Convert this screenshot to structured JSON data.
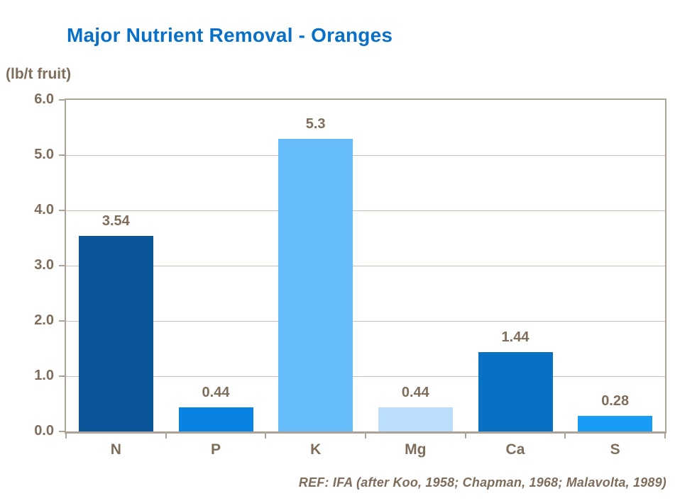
{
  "title": "Major Nutrient Removal - Oranges",
  "y_axis_unit_label": "(lb/t fruit)",
  "footnote": "REF: IFA (after Koo, 1958; Chapman, 1968; Malavolta, 1989)",
  "colors": {
    "title": "#0970C8",
    "text": "#7E6D5B",
    "grid": "#C9C0B3",
    "axis_border": "#ACA295",
    "background": "#FFFFFF",
    "bars": [
      "#0B559B",
      "#0883E3",
      "#66BBF9",
      "#BADEFB",
      "#0971C4",
      "#189CF5"
    ]
  },
  "chart_data": {
    "type": "bar",
    "title": "Major Nutrient Removal - Oranges",
    "xlabel": "",
    "ylabel": "(lb/t fruit)",
    "categories": [
      "N",
      "P",
      "K",
      "Mg",
      "Ca",
      "S"
    ],
    "values": [
      3.54,
      0.44,
      5.3,
      0.44,
      1.44,
      0.28
    ],
    "value_labels": [
      "3.54",
      "0.44",
      "5.3",
      "0.44",
      "1.44",
      "0.28"
    ],
    "ylim": [
      0,
      6
    ],
    "ytick_step": 1.0,
    "ytick_labels": [
      "0.0",
      "1.0",
      "2.0",
      "3.0",
      "4.0",
      "5.0",
      "6.0"
    ],
    "grid": true,
    "legend": false,
    "bar_colors": [
      "#0B559B",
      "#0883E3",
      "#66BBF9",
      "#BADEFB",
      "#0971C4",
      "#189CF5"
    ],
    "annotation": "REF: IFA (after Koo, 1958; Chapman, 1968; Malavolta, 1989)"
  }
}
